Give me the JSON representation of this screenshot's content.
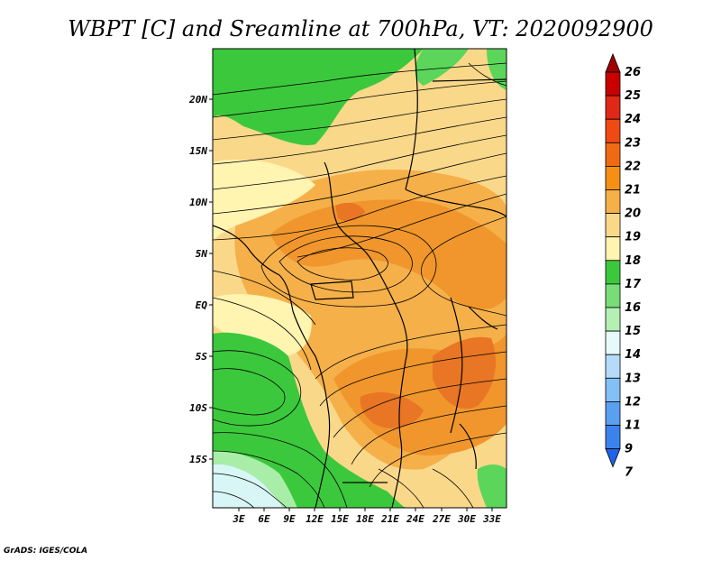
{
  "title": "WBPT [C] and Sreamline at 700hPa, VT: 2020092900",
  "credit": "GrADS: IGES/COLA",
  "map": {
    "lat_labels": [
      "20N",
      "15N",
      "10N",
      "5N",
      "EQ",
      "5S",
      "10S",
      "15S"
    ],
    "lon_labels": [
      "3E",
      "6E",
      "9E",
      "12E",
      "15E",
      "18E",
      "21E",
      "24E",
      "27E",
      "30E",
      "33E"
    ],
    "colors": {
      "green_dark": "#3cc83c",
      "green": "#5bd65b",
      "light_cyan": "#d8f6f6",
      "pale_yellow": "#fff4b0",
      "tan": "#fad88a",
      "light_orange": "#f5b04a",
      "orange": "#f0962c",
      "dark_orange": "#e87624",
      "red_orange": "#e0541e"
    }
  },
  "colorbar": {
    "levels": [
      "26",
      "25",
      "24",
      "23",
      "22",
      "21",
      "20",
      "19",
      "18",
      "17",
      "16",
      "15",
      "14",
      "13",
      "12",
      "11",
      "9",
      "7"
    ],
    "colors": [
      "#a00000",
      "#c80000",
      "#e02818",
      "#f04a14",
      "#f06a14",
      "#f59014",
      "#f5b04a",
      "#fad88a",
      "#fff4b0",
      "#3cc83c",
      "#78dc78",
      "#b4f0b4",
      "#e6fafa",
      "#b4dcfa",
      "#82c0f5",
      "#5aa0f0",
      "#3c82eb",
      "#1e64e6"
    ]
  }
}
